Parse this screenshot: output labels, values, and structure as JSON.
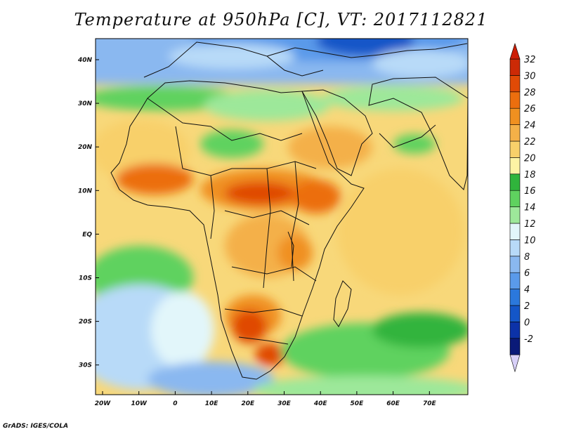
{
  "title": "Temperature at 950hPa [C], VT: 2017112821",
  "footer": "GrADS: IGES/COLA",
  "map": {
    "lat_ticks": [
      "40N",
      "30N",
      "20N",
      "10N",
      "EQ",
      "10S",
      "20S",
      "30S"
    ],
    "lon_ticks": [
      "20W",
      "10W",
      "0",
      "10E",
      "20E",
      "30E",
      "40E",
      "50E",
      "60E",
      "70E"
    ]
  },
  "colorbar": {
    "labels": [
      "32",
      "30",
      "28",
      "26",
      "24",
      "22",
      "20",
      "18",
      "16",
      "14",
      "12",
      "10",
      "8",
      "6",
      "4",
      "2",
      "0",
      "-2"
    ],
    "colors": [
      "#0a1a78",
      "#0c32a8",
      "#1456c8",
      "#2b78dc",
      "#5a9aea",
      "#8ab8f0",
      "#b8daf8",
      "#e2f6fa",
      "#9de89a",
      "#5fd25f",
      "#30b43c",
      "#fdf3a4",
      "#f8d06a",
      "#f4b048",
      "#f09020",
      "#ec6e0e",
      "#e04a06",
      "#cc2a06"
    ],
    "arrow_top": "#cc1e06",
    "arrow_bottom": "#d8d0f8"
  }
}
